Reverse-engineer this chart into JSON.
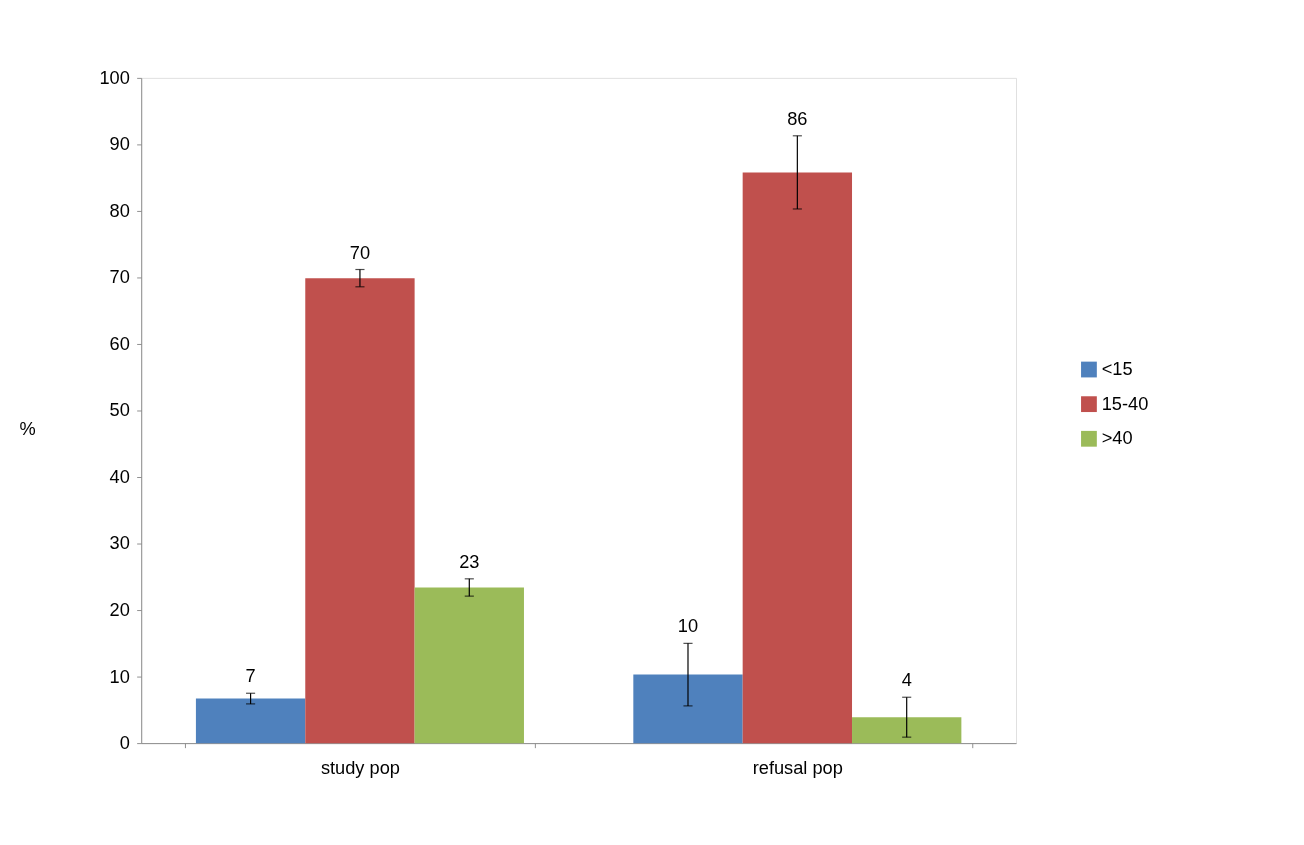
{
  "chart_data": {
    "type": "bar",
    "ylabel": "%",
    "categories": [
      "study pop",
      "refusal pop"
    ],
    "series": [
      {
        "name": "<15",
        "color": "#4f81bd",
        "values": [
          6.7,
          10.3
        ],
        "errors": [
          0.8,
          4.7
        ],
        "value_labels": [
          "7",
          "10"
        ]
      },
      {
        "name": "15-40",
        "color": "#c0504d",
        "values": [
          69.9,
          85.8
        ],
        "errors": [
          1.3,
          5.5
        ],
        "value_labels": [
          "70",
          "86"
        ]
      },
      {
        "name": ">40",
        "color": "#9bbb59",
        "values": [
          23.4,
          3.9
        ],
        "errors": [
          1.3,
          3.0
        ],
        "value_labels": [
          "23",
          "4"
        ]
      }
    ],
    "ylim": [
      0,
      100
    ],
    "yticks": [
      0,
      10,
      20,
      30,
      40,
      50,
      60,
      70,
      80,
      90,
      100
    ],
    "grid": false,
    "legend": "right"
  }
}
